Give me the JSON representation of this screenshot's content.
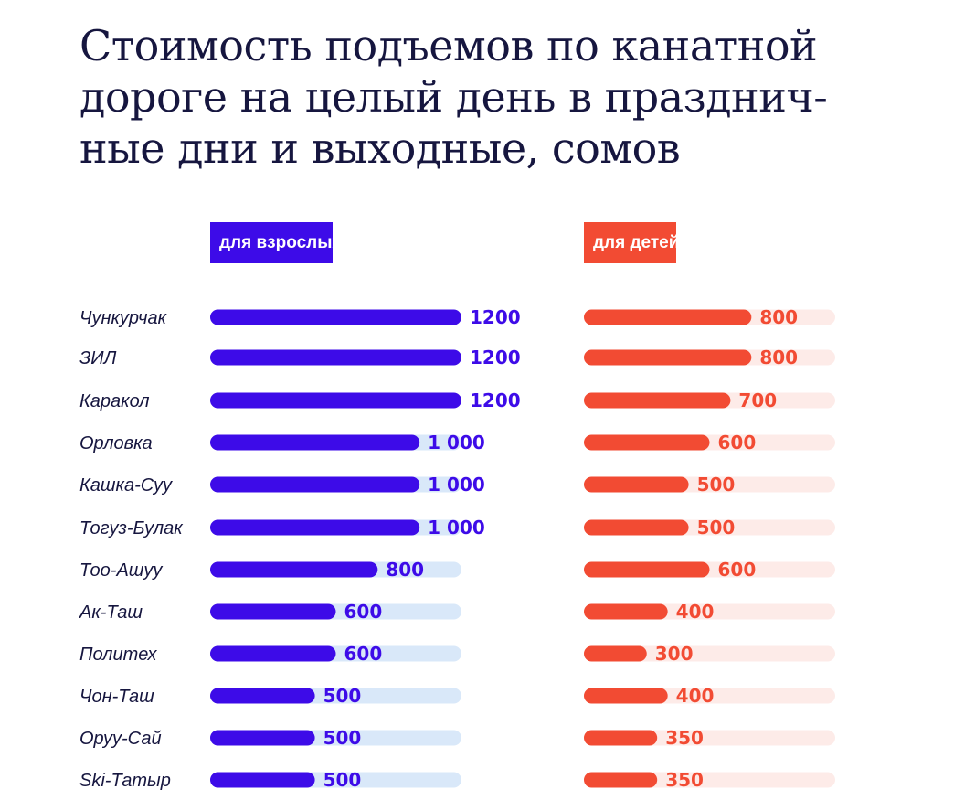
{
  "colors": {
    "adult": "#3d0be8",
    "adult_track": "#d9e8f9",
    "kid": "#f24b33",
    "kid_track": "#fdebe8",
    "title": "#16163f"
  },
  "chart_data": {
    "type": "bar",
    "orientation": "horizontal",
    "title": "Стоимость подъемов по канатной дороге на целый день в празднич-ные дни и выходные, сомов",
    "title_lines": [
      "Стоимость подъемов по канатной",
      "дороге на целый день в празднич-",
      "ные дни и выходные, сомов"
    ],
    "categories": [
      "Чункурчак",
      "ЗИЛ",
      "Каракол",
      "Орловка",
      "Кашка-Суу",
      "Тогуз-Булак",
      "Тоо-Ашуу",
      "Ак-Таш",
      "Политех",
      "Чон-Таш",
      "Оруу-Сай",
      "Ski-Татыр"
    ],
    "series": [
      {
        "name": "для взрослых",
        "values": [
          1200,
          1200,
          1200,
          1000,
          1000,
          1000,
          800,
          600,
          600,
          500,
          500,
          500
        ],
        "value_labels": [
          "1200",
          "1200",
          "1200",
          "1 000",
          "1 000",
          "1 000",
          "800",
          "600",
          "600",
          "500",
          "500",
          "500"
        ],
        "max": 1200
      },
      {
        "name": "для детей",
        "values": [
          800,
          800,
          700,
          600,
          500,
          500,
          600,
          400,
          300,
          400,
          350,
          350
        ],
        "value_labels": [
          "800",
          "800",
          "700",
          "600",
          "500",
          "500",
          "600",
          "400",
          "300",
          "400",
          "350",
          "350"
        ],
        "max": 1200
      }
    ],
    "legend": "top",
    "grid": false
  }
}
